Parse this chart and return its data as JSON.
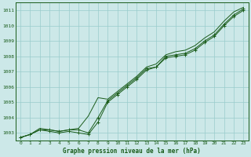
{
  "title": "Graphe pression niveau de la mer (hPa)",
  "xlabel_hours": [
    0,
    1,
    2,
    3,
    4,
    5,
    6,
    7,
    8,
    9,
    10,
    11,
    12,
    13,
    14,
    15,
    16,
    17,
    18,
    19,
    20,
    21,
    22,
    23
  ],
  "ylim": [
    1002.5,
    1011.5
  ],
  "yticks": [
    1003,
    1004,
    1005,
    1006,
    1007,
    1008,
    1009,
    1010,
    1011
  ],
  "bg_color": "#cce8e8",
  "grid_color": "#99cccc",
  "line_color": "#1a5c1a",
  "line1": [
    1002.7,
    1002.9,
    1003.2,
    1003.1,
    1003.0,
    1003.1,
    1003.0,
    1002.9,
    1003.7,
    1005.0,
    1005.5,
    1006.0,
    1006.5,
    1007.1,
    1007.3,
    1007.9,
    1008.0,
    1008.1,
    1008.4,
    1008.9,
    1009.3,
    1010.0,
    1010.6,
    1011.0
  ],
  "line2": [
    1002.7,
    1002.9,
    1003.2,
    1003.2,
    1003.1,
    1003.2,
    1003.2,
    1003.0,
    1004.0,
    1005.1,
    1005.6,
    1006.1,
    1006.6,
    1007.2,
    1007.3,
    1008.0,
    1008.1,
    1008.2,
    1008.5,
    1009.0,
    1009.4,
    1010.1,
    1010.7,
    1011.1
  ],
  "line3": [
    1002.7,
    1002.9,
    1003.3,
    1003.2,
    1003.1,
    1003.2,
    1003.3,
    1004.1,
    1005.3,
    1005.2,
    1005.7,
    1006.2,
    1006.7,
    1007.3,
    1007.5,
    1008.1,
    1008.3,
    1008.4,
    1008.7,
    1009.2,
    1009.6,
    1010.3,
    1010.9,
    1011.2
  ]
}
